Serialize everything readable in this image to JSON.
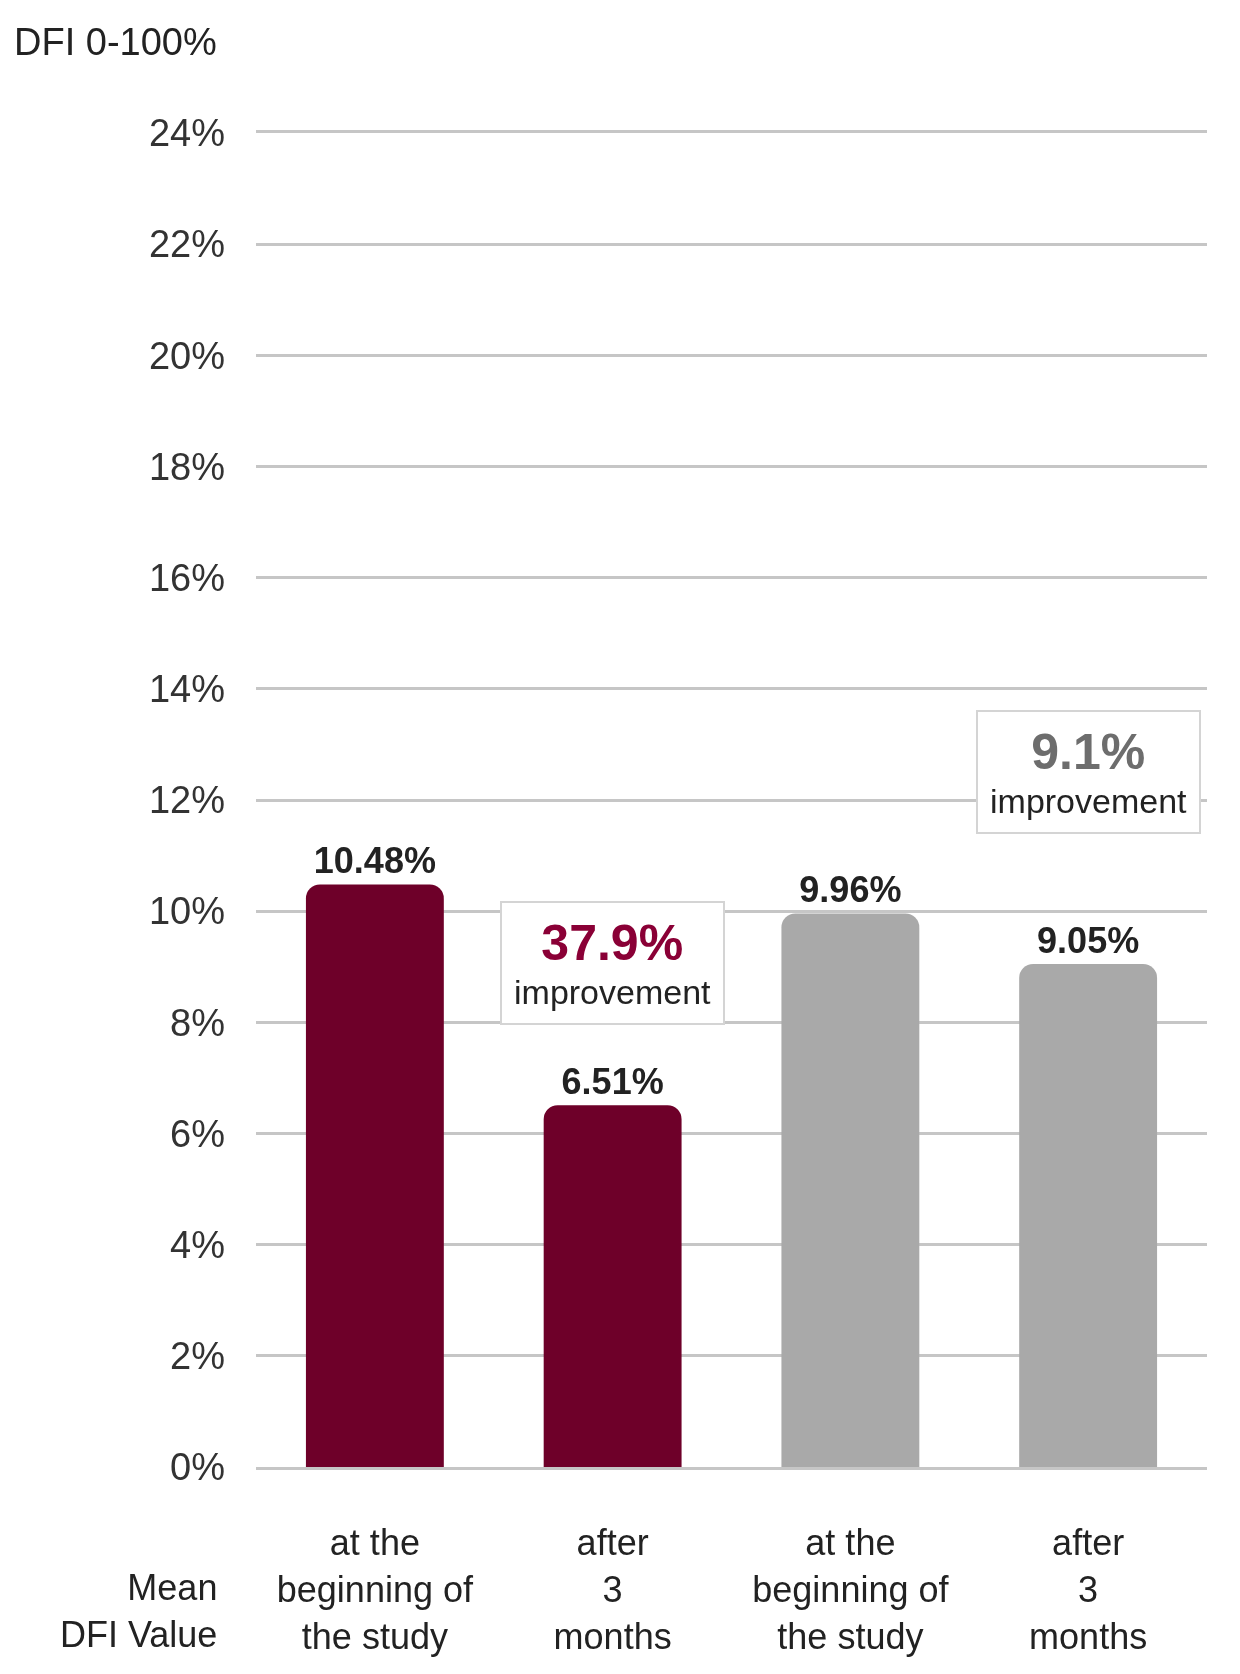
{
  "chart_data": {
    "type": "bar",
    "ylabel": "DFI 0-100%",
    "xlabel": "Mean\nDFI Value",
    "categories": [
      "at the\nbeginning of\nthe study",
      "after\n3\nmonths",
      "at the\nbeginning of\nthe study",
      "after\n3\nmonths"
    ],
    "values": [
      10.48,
      6.51,
      9.96,
      9.05
    ],
    "colors": [
      "#6e0029",
      "#6e0029",
      "#a9a9a9",
      "#a9a9a9"
    ],
    "value_labels": [
      "10.48%",
      "6.51%",
      "9.96%",
      "9.05%"
    ],
    "ylim": [
      0,
      24
    ],
    "yticks": [
      {
        "value": 0,
        "label": "0%"
      },
      {
        "value": 2,
        "label": "2%"
      },
      {
        "value": 4,
        "label": "4%"
      },
      {
        "value": 6,
        "label": "6%"
      },
      {
        "value": 8,
        "label": "8%"
      },
      {
        "value": 10,
        "label": "10%"
      },
      {
        "value": 12,
        "label": "12%"
      },
      {
        "value": 14,
        "label": "14%"
      },
      {
        "value": 16,
        "label": "16%"
      },
      {
        "value": 18,
        "label": "18%"
      },
      {
        "value": 20,
        "label": "20%"
      },
      {
        "value": 22,
        "label": "22%"
      },
      {
        "value": 24,
        "label": "24%"
      }
    ],
    "grid": "y",
    "annotations": [
      "37.9%\nimprovement",
      "9.1%\nimprovement"
    ]
  }
}
